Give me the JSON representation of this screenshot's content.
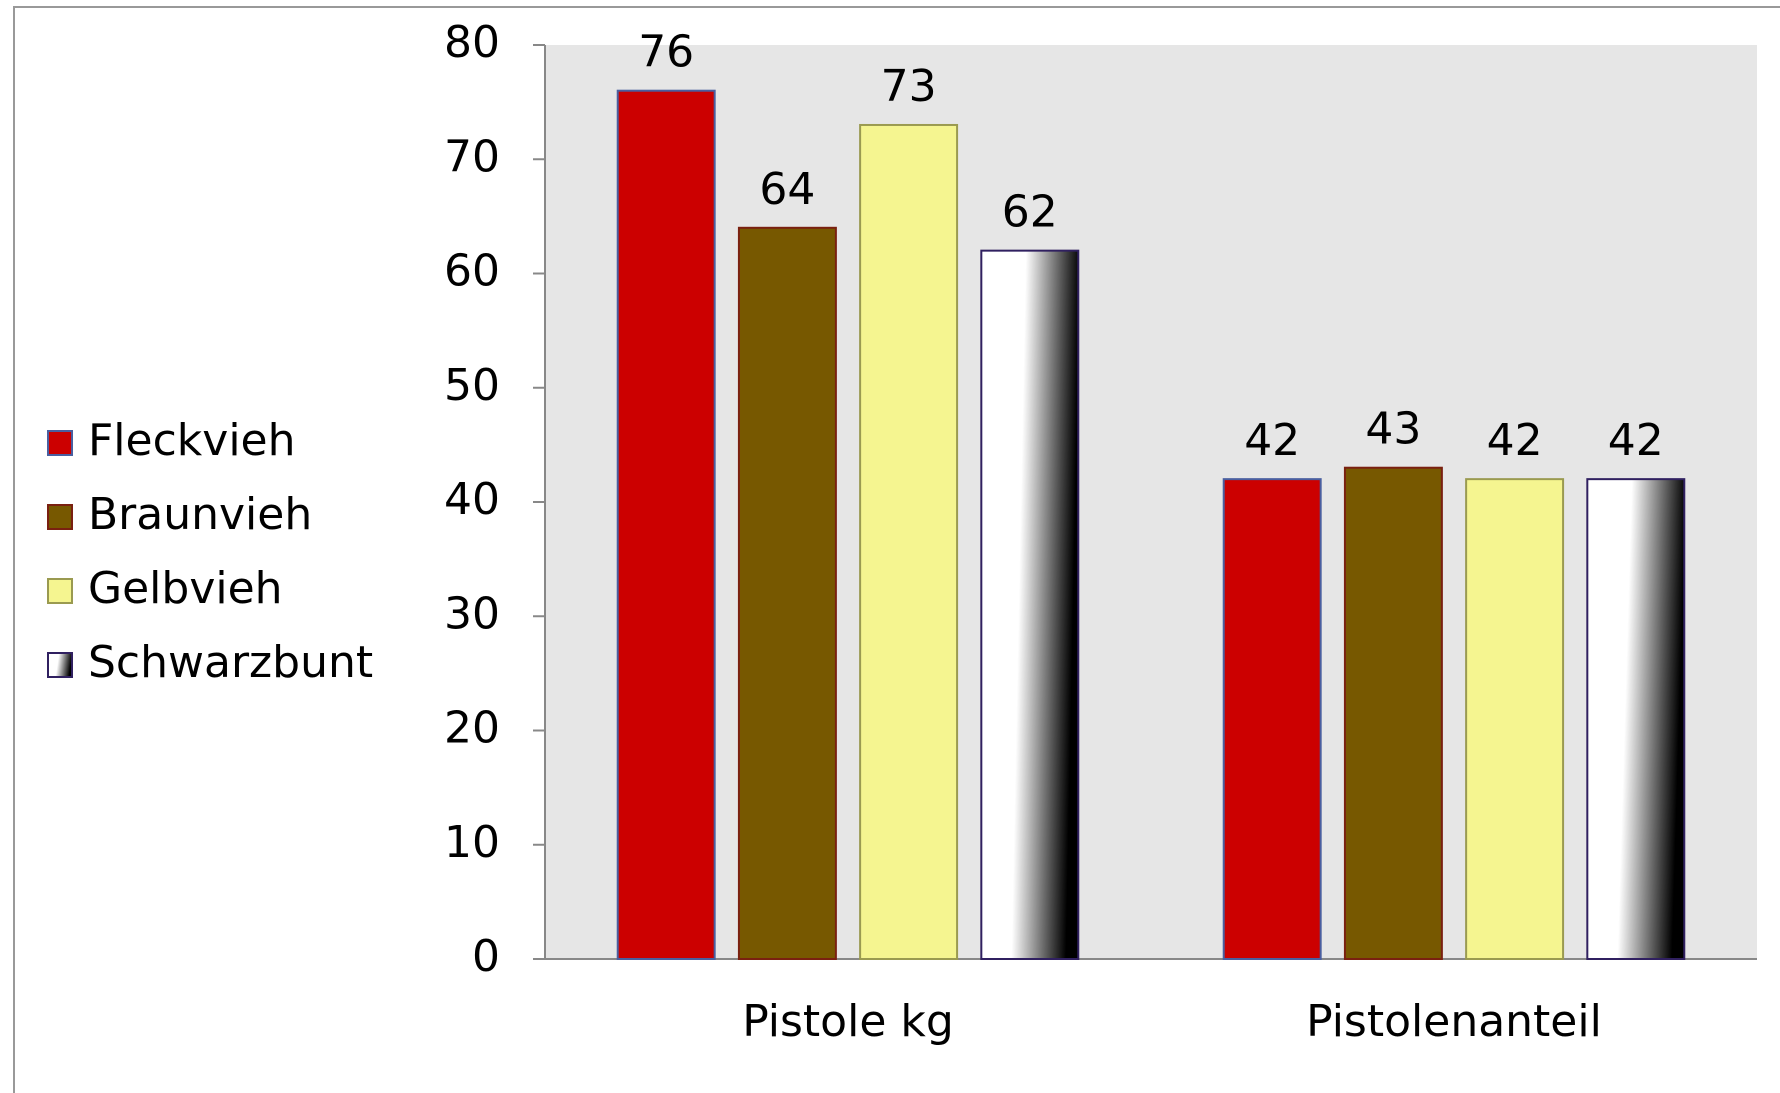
{
  "chart_data": {
    "type": "bar",
    "categories": [
      "Pistole kg",
      "Pistolenanteil"
    ],
    "series": [
      {
        "name": "Fleckvieh",
        "color": "#cc0000",
        "values": [
          76,
          42
        ]
      },
      {
        "name": "Braunvieh",
        "color": "#775800",
        "values": [
          64,
          43
        ]
      },
      {
        "name": "Gelbvieh",
        "color": "#f5f590",
        "values": [
          73,
          42
        ]
      },
      {
        "name": "Schwarzbunt",
        "color": "#000000",
        "gradient": true,
        "values": [
          62,
          42
        ]
      }
    ],
    "ylim": [
      0,
      80
    ],
    "yticks": [
      0,
      10,
      20,
      30,
      40,
      50,
      60,
      70,
      80
    ],
    "data_labels": true,
    "legend": "left"
  }
}
